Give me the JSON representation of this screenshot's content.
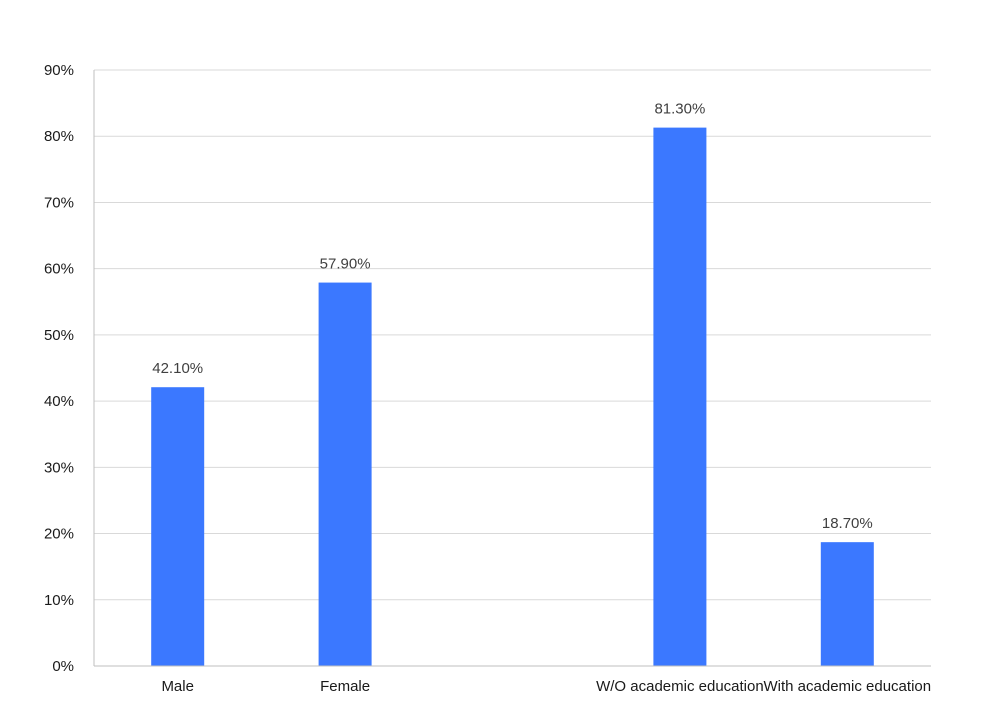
{
  "chart_data": {
    "type": "bar",
    "title": "",
    "xlabel": "",
    "ylabel": "",
    "categories": [
      "Male",
      "Female",
      "",
      "W/O academic education",
      "With academic education"
    ],
    "values": [
      42.1,
      57.9,
      null,
      81.3,
      18.7
    ],
    "data_labels": [
      "42.10%",
      "57.90%",
      "",
      "81.30%",
      "18.70%"
    ],
    "ylim": [
      0,
      90
    ],
    "y_ticks": [
      0,
      10,
      20,
      30,
      40,
      50,
      60,
      70,
      80,
      90
    ],
    "y_tick_labels": [
      "0%",
      "10%",
      "20%",
      "30%",
      "40%",
      "50%",
      "60%",
      "70%",
      "80%",
      "90%"
    ],
    "grid": true,
    "legend": "none",
    "bar_color": "#3b78ff"
  }
}
